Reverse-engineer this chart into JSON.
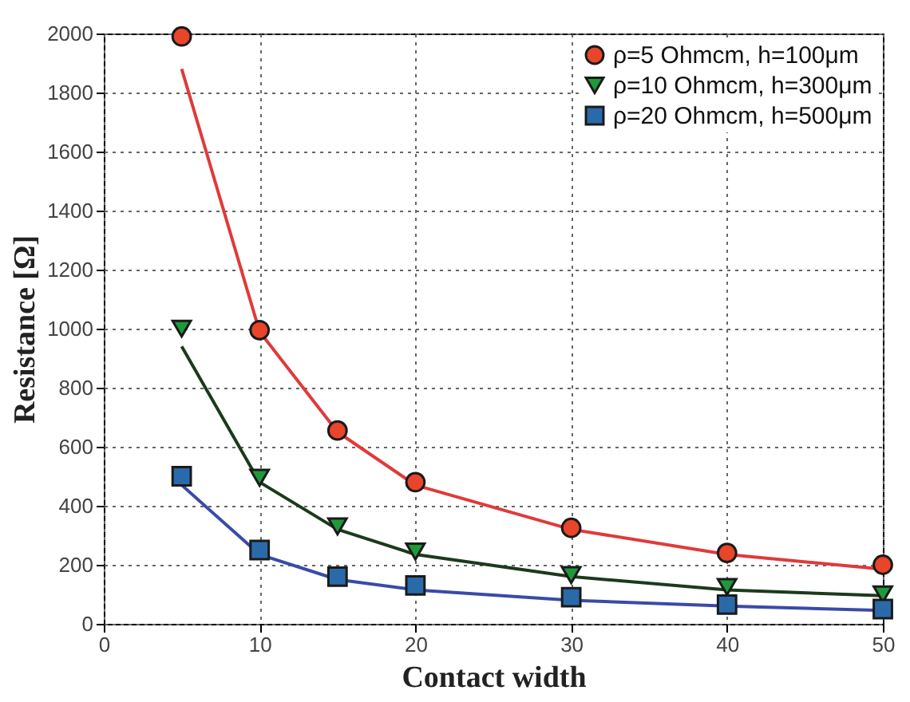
{
  "chart_data": {
    "type": "scatter",
    "xlabel": "Contact width",
    "ylabel": "Resistance [Ω]",
    "x": [
      5,
      10,
      15,
      20,
      30,
      40,
      50
    ],
    "xlim": [
      0,
      50
    ],
    "xticks": [
      0,
      10,
      20,
      30,
      40,
      50
    ],
    "ylim": [
      0,
      2000
    ],
    "yticks": [
      0,
      200,
      400,
      600,
      800,
      1000,
      1200,
      1400,
      1600,
      1800,
      2000
    ],
    "grid": true,
    "legend": "top right",
    "series": [
      {
        "name": "ρ=5 Ohmcm, h=100μm",
        "color": "#e8452a",
        "marker": "circle",
        "values": [
          1990,
          995,
          655,
          480,
          325,
          240,
          200
        ]
      },
      {
        "name": "ρ=10 Ohmcm, h=300μm",
        "color": "#1e9a3a",
        "marker": "triangle",
        "values": [
          1000,
          495,
          330,
          245,
          165,
          125,
          100
        ]
      },
      {
        "name": "ρ=20 Ohmcm, h=500μm",
        "color": "#2a6aaa",
        "marker": "square",
        "values": [
          500,
          250,
          160,
          130,
          90,
          65,
          50
        ]
      },
      {
        "type": "line",
        "color": "#e03a3a",
        "line_style": "solid",
        "values": [
          1880,
          990,
          650,
          470,
          320,
          235,
          185
        ]
      },
      {
        "type": "line",
        "color": "#1c3a1c",
        "line_style": "solid",
        "values": [
          940,
          480,
          320,
          235,
          160,
          115,
          95
        ]
      },
      {
        "type": "line",
        "color": "#3a4aa8",
        "line_style": "solid",
        "values": [
          470,
          235,
          150,
          115,
          80,
          60,
          45
        ]
      }
    ]
  }
}
